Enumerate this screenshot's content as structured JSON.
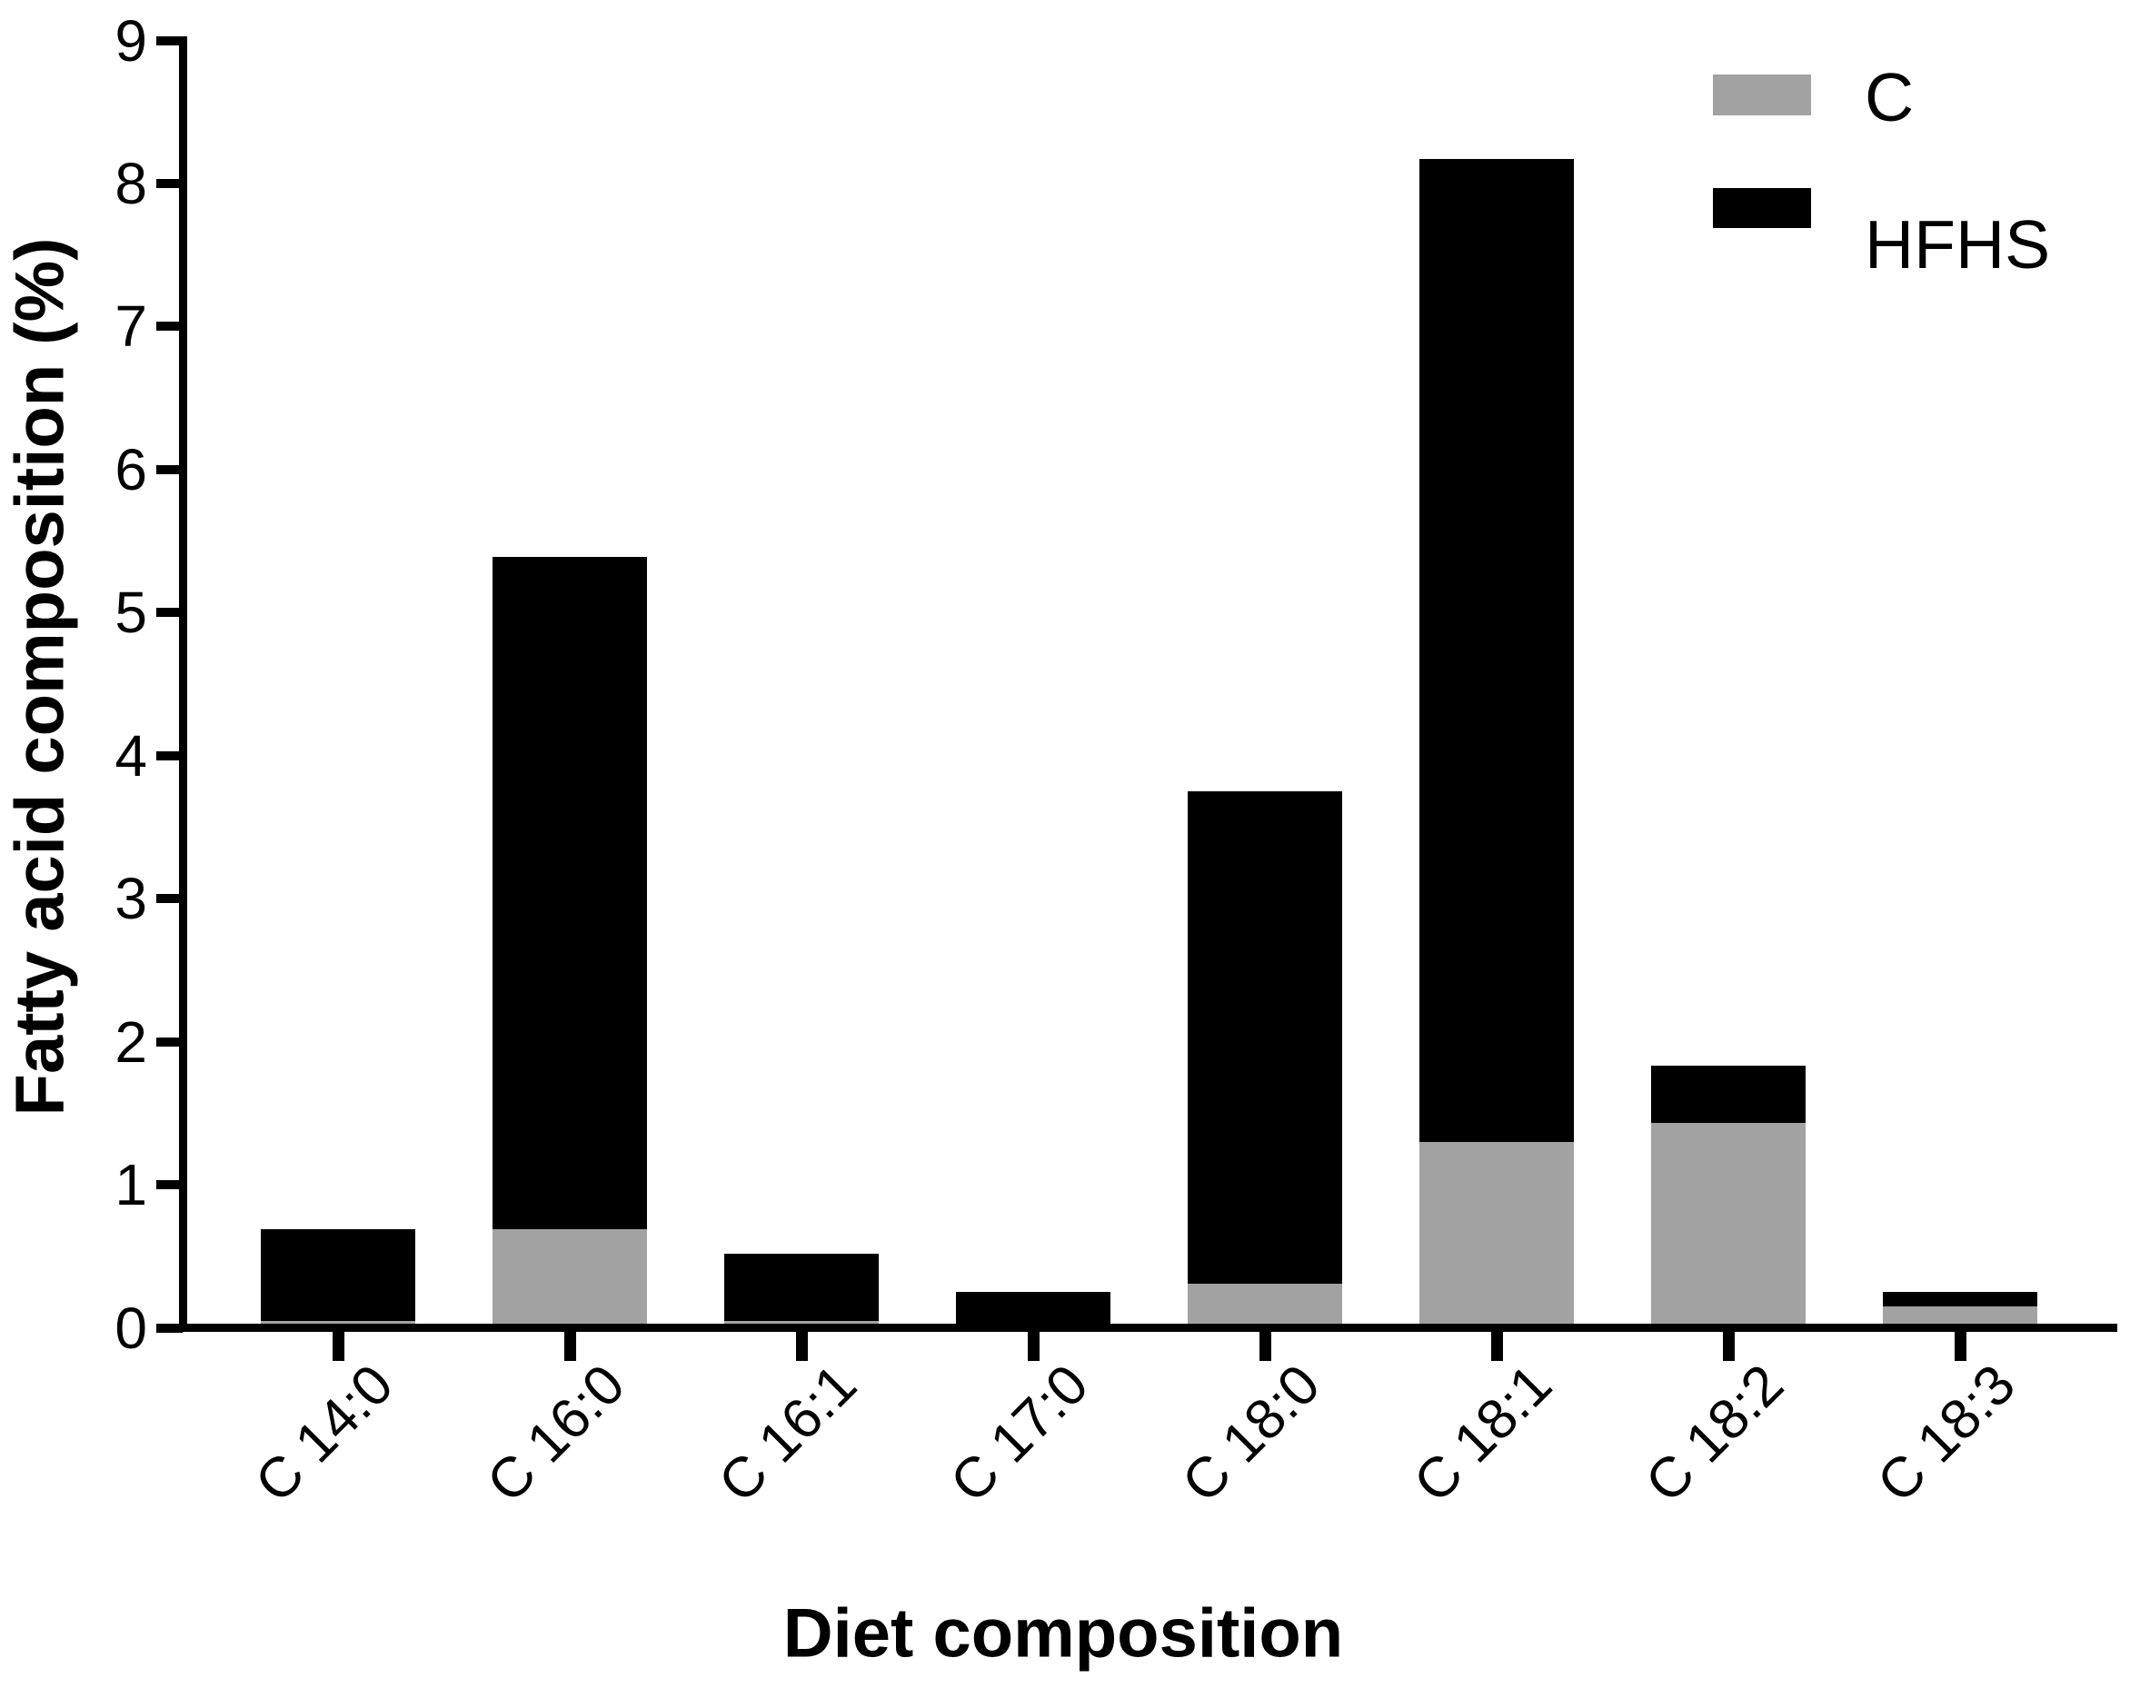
{
  "chart_data": {
    "type": "bar",
    "variant": "stacked",
    "title": "",
    "xlabel": "Diet composition",
    "ylabel": "Fatty acid composition (%)",
    "categories": [
      "C 14:0",
      "C 16:0",
      "C 16:1",
      "C 17:0",
      "C 18:0",
      "C 18:1",
      "C 18:2",
      "C 18:3"
    ],
    "series": [
      {
        "name": "C",
        "color": "#A2A2A2",
        "values": [
          0.05,
          0.69,
          0.05,
          0.0,
          0.31,
          1.3,
          1.43,
          0.15
        ]
      },
      {
        "name": "HFHS",
        "color": "#000000",
        "values": [
          0.64,
          4.7,
          0.47,
          0.25,
          3.44,
          6.87,
          0.4,
          0.1
        ]
      }
    ],
    "stack_totals": [
      0.69,
      5.39,
      0.52,
      0.25,
      3.75,
      8.17,
      1.83,
      0.25
    ],
    "ylim": [
      0,
      9
    ],
    "y_ticks": [
      0,
      1,
      2,
      3,
      4,
      5,
      6,
      7,
      8,
      9
    ],
    "grid": false,
    "legend_position": "top-right",
    "axis_color": "#000000",
    "background_color": "#ffffff"
  }
}
